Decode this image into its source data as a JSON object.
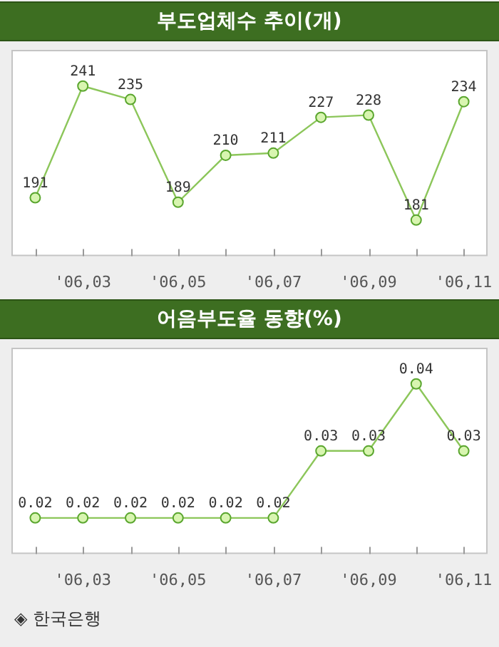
{
  "chart_data": [
    {
      "type": "line",
      "title": "부도업체수 추이(개)",
      "categories": [
        null,
        "'06,03",
        null,
        "'06,05",
        null,
        "'06,07",
        null,
        "'06,09",
        null,
        "'06,11"
      ],
      "values": [
        191,
        241,
        235,
        189,
        210,
        211,
        227,
        228,
        181,
        234
      ],
      "color": "#8cc65a",
      "marker": "circle",
      "line_style": "solid",
      "data_labels": true,
      "tick_labels": "x"
    },
    {
      "type": "line",
      "title": "어음부도율 동향(%)",
      "categories": [
        null,
        "'06,03",
        null,
        "'06,05",
        null,
        "'06,07",
        null,
        "'06,09",
        null,
        "'06,11"
      ],
      "values": [
        0.02,
        0.02,
        0.02,
        0.02,
        0.02,
        0.02,
        0.03,
        0.03,
        0.04,
        0.03
      ],
      "color": "#8cc65a",
      "marker": "circle",
      "line_style": "solid",
      "data_labels": true,
      "tick_labels": "x",
      "annotations": [
        "◈ 한국은행"
      ]
    }
  ]
}
